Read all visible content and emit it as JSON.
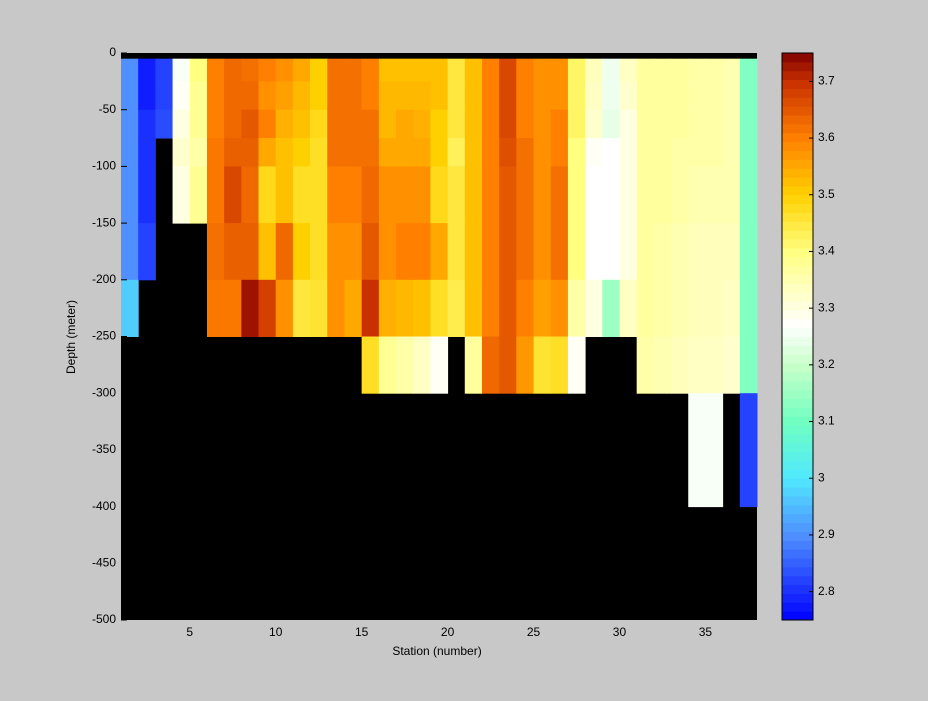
{
  "chart_data": {
    "type": "heatmap",
    "xlabel": "Station (number)",
    "ylabel": "Depth (meter)",
    "xlim": [
      1,
      38
    ],
    "ylim": [
      -500,
      0
    ],
    "xticks": [
      5,
      10,
      15,
      20,
      25,
      30,
      35
    ],
    "yticks": [
      0,
      -50,
      -100,
      -150,
      -200,
      -250,
      -300,
      -350,
      -400,
      -450,
      -500
    ],
    "x_edges": [
      1,
      2,
      3,
      4,
      5,
      6,
      7,
      8,
      9,
      10,
      11,
      12,
      13,
      14,
      15,
      16,
      17,
      18,
      19,
      20,
      21,
      22,
      23,
      24,
      25,
      26,
      27,
      28,
      29,
      30,
      31,
      32,
      33,
      34,
      35,
      36,
      37,
      38
    ],
    "y_edges": [
      0,
      -5,
      -25,
      -50,
      -75,
      -100,
      -150,
      -200,
      -250,
      -300,
      -400,
      -500
    ],
    "missing_color": "#000000",
    "clim": [
      2.75,
      3.75
    ],
    "cticks": [
      2.8,
      2.9,
      3,
      3.1,
      3.2,
      3.3,
      3.4,
      3.5,
      3.6,
      3.7
    ],
    "colorscale": [
      [
        2.75,
        "#0000ff"
      ],
      [
        2.9,
        "#4f8fff"
      ],
      [
        3.0,
        "#50e8ff"
      ],
      [
        3.1,
        "#70ffc0"
      ],
      [
        3.2,
        "#c8ffc8"
      ],
      [
        3.27,
        "#ffffff"
      ],
      [
        3.4,
        "#ffff80"
      ],
      [
        3.5,
        "#ffd000"
      ],
      [
        3.6,
        "#ff8000"
      ],
      [
        3.7,
        "#c83000"
      ],
      [
        3.75,
        "#800000"
      ]
    ],
    "values": [
      [
        null,
        2.9,
        2.9,
        2.9,
        2.9,
        2.9,
        2.9,
        2.97,
        null,
        null,
        null
      ],
      [
        null,
        2.78,
        2.78,
        2.8,
        2.8,
        2.8,
        2.82,
        null,
        null,
        null,
        null
      ],
      [
        null,
        2.82,
        2.82,
        2.83,
        null,
        null,
        null,
        null,
        null,
        null,
        null
      ],
      [
        null,
        3.26,
        3.28,
        3.3,
        3.32,
        3.3,
        null,
        null,
        null,
        null,
        null
      ],
      [
        null,
        3.4,
        3.38,
        3.38,
        3.36,
        3.38,
        null,
        null,
        null,
        null,
        null
      ],
      [
        null,
        3.6,
        3.6,
        3.6,
        3.61,
        3.61,
        3.62,
        3.61,
        null,
        null,
        null
      ],
      [
        null,
        3.63,
        3.63,
        3.63,
        3.64,
        3.67,
        3.64,
        3.61,
        null,
        null,
        null
      ],
      [
        null,
        3.62,
        3.63,
        3.65,
        3.64,
        3.63,
        3.64,
        3.73,
        null,
        null,
        null
      ],
      [
        null,
        3.6,
        3.58,
        3.6,
        3.55,
        3.48,
        3.52,
        3.68,
        null,
        null,
        null
      ],
      [
        null,
        3.58,
        3.56,
        3.54,
        3.52,
        3.52,
        3.63,
        3.58,
        null,
        null,
        null
      ],
      [
        null,
        3.55,
        3.53,
        3.52,
        3.5,
        3.47,
        3.5,
        3.45,
        null,
        null,
        null
      ],
      [
        null,
        3.5,
        3.5,
        3.48,
        3.47,
        3.47,
        3.47,
        3.46,
        null,
        null,
        null
      ],
      [
        null,
        3.62,
        3.62,
        3.62,
        3.62,
        3.6,
        3.58,
        3.58,
        null,
        null,
        null
      ],
      [
        null,
        3.62,
        3.62,
        3.62,
        3.62,
        3.6,
        3.58,
        3.55,
        null,
        null,
        null
      ],
      [
        null,
        3.6,
        3.6,
        3.62,
        3.62,
        3.63,
        3.65,
        3.7,
        3.47,
        null,
        null
      ],
      [
        null,
        3.52,
        3.53,
        3.53,
        3.55,
        3.58,
        3.58,
        3.54,
        3.38,
        null,
        null
      ],
      [
        null,
        3.52,
        3.53,
        3.55,
        3.55,
        3.58,
        3.6,
        3.53,
        3.36,
        null,
        null
      ],
      [
        null,
        3.52,
        3.53,
        3.54,
        3.55,
        3.58,
        3.6,
        3.52,
        3.33,
        null,
        null
      ],
      [
        null,
        3.52,
        3.52,
        3.5,
        3.5,
        3.48,
        3.55,
        3.47,
        3.28,
        null,
        null
      ],
      [
        null,
        3.45,
        3.45,
        3.45,
        3.43,
        3.45,
        3.45,
        3.44,
        null,
        null,
        null
      ],
      [
        null,
        3.52,
        3.52,
        3.52,
        3.52,
        3.52,
        3.52,
        3.52,
        3.37,
        null,
        null
      ],
      [
        null,
        3.6,
        3.6,
        3.6,
        3.6,
        3.6,
        3.6,
        3.6,
        3.63,
        null,
        null
      ],
      [
        null,
        3.67,
        3.67,
        3.67,
        3.66,
        3.65,
        3.65,
        3.65,
        3.65,
        null,
        null
      ],
      [
        null,
        3.6,
        3.6,
        3.6,
        3.62,
        3.62,
        3.62,
        3.6,
        3.57,
        null,
        null
      ],
      [
        null,
        3.58,
        3.58,
        3.58,
        3.58,
        3.58,
        3.58,
        3.56,
        3.46,
        null,
        null
      ],
      [
        null,
        3.58,
        3.58,
        3.6,
        3.6,
        3.62,
        3.62,
        3.58,
        3.47,
        null,
        null
      ],
      [
        null,
        3.42,
        3.42,
        3.42,
        3.4,
        3.4,
        3.4,
        3.36,
        3.28,
        null,
        null
      ],
      [
        null,
        3.34,
        3.33,
        3.32,
        3.28,
        3.27,
        3.27,
        3.3,
        null,
        null,
        null
      ],
      [
        null,
        3.25,
        3.25,
        3.24,
        3.27,
        3.27,
        3.27,
        3.15,
        null,
        null,
        null
      ],
      [
        null,
        3.33,
        3.32,
        3.3,
        3.3,
        3.3,
        3.3,
        3.33,
        null,
        null,
        null
      ],
      [
        null,
        3.37,
        3.37,
        3.37,
        3.37,
        3.37,
        3.37,
        3.37,
        3.36,
        null,
        null
      ],
      [
        null,
        3.37,
        3.37,
        3.37,
        3.37,
        3.37,
        3.36,
        3.36,
        3.35,
        null,
        null
      ],
      [
        null,
        3.37,
        3.37,
        3.37,
        3.36,
        3.36,
        3.35,
        3.35,
        3.34,
        null,
        null
      ],
      [
        null,
        3.36,
        3.36,
        3.36,
        3.36,
        3.35,
        3.34,
        3.34,
        3.33,
        3.26,
        null
      ],
      [
        null,
        3.36,
        3.36,
        3.36,
        3.36,
        3.35,
        3.34,
        3.34,
        3.33,
        3.26,
        null
      ],
      [
        null,
        3.35,
        3.35,
        3.35,
        3.35,
        3.35,
        3.34,
        3.33,
        3.32,
        null,
        null
      ],
      [
        null,
        3.12,
        3.12,
        3.12,
        3.12,
        3.12,
        3.12,
        3.12,
        3.12,
        2.82,
        null
      ]
    ]
  }
}
